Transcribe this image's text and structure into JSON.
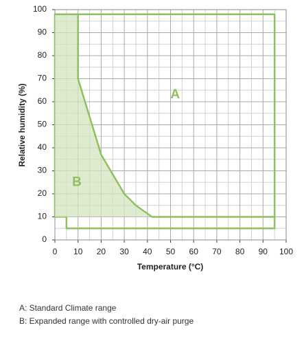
{
  "chart_data": {
    "type": "region",
    "xlabel": "Temperature (°C)",
    "ylabel": "Relative humidity (%)",
    "xlim": [
      0,
      100
    ],
    "ylim": [
      0,
      100
    ],
    "xticks": [
      0,
      10,
      20,
      30,
      40,
      50,
      60,
      70,
      80,
      90,
      100
    ],
    "yticks": [
      0,
      10,
      20,
      30,
      40,
      50,
      60,
      70,
      80,
      90,
      100
    ],
    "grid": true,
    "color": "#8fc060",
    "fill_color": "#d3e4bf",
    "regions": [
      {
        "label": "A",
        "filled": false,
        "x": [
          0,
          0,
          95,
          95,
          5,
          5,
          0
        ],
        "y": [
          10,
          98,
          98,
          5,
          5,
          10,
          10
        ]
      },
      {
        "label": "B",
        "filled": true,
        "x": [
          0,
          10,
          10,
          20,
          30,
          35,
          42,
          95
        ],
        "y": [
          98,
          98,
          70,
          37,
          20,
          15,
          10,
          10
        ]
      }
    ],
    "notes": [
      "A: Standard Climate range",
      "B: Expanded range with controlled dry-air purge"
    ]
  }
}
